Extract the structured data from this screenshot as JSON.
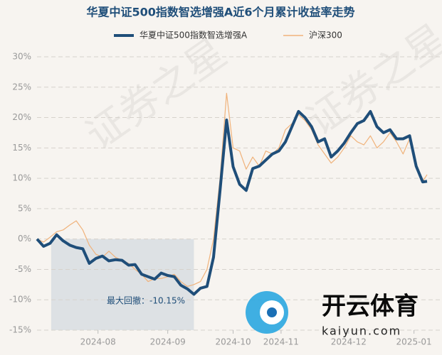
{
  "chart_data": {
    "type": "line",
    "title": "华夏中证500指数智选增强A近6个月累计收益率走势",
    "x": [
      0,
      3,
      6,
      9,
      12,
      15,
      18,
      21,
      24,
      27,
      30,
      33,
      36,
      39,
      42,
      45,
      48,
      51,
      54,
      57,
      60,
      63,
      66,
      69,
      72,
      75,
      78,
      81,
      84,
      87,
      90,
      93,
      96,
      99,
      102,
      105,
      108,
      111,
      114,
      117,
      120,
      123,
      126,
      129,
      132,
      135,
      138,
      141,
      144,
      147,
      150,
      153,
      156,
      159,
      162,
      165,
      168,
      171,
      174,
      177,
      179
    ],
    "series": [
      {
        "name": "华夏中证500指数智选增强A",
        "color": "#1f4e79",
        "values": [
          0,
          -1.2,
          -0.7,
          0.7,
          -0.3,
          -1.0,
          -1.4,
          -1.6,
          -4.0,
          -3.2,
          -2.8,
          -3.6,
          -3.4,
          -3.5,
          -4.3,
          -4.2,
          -5.8,
          -6.2,
          -6.6,
          -5.6,
          -6.0,
          -6.2,
          -7.6,
          -8.2,
          -9.1,
          -8.1,
          -7.8,
          -3.0,
          8.0,
          19.6,
          11.9,
          9.0,
          8.0,
          11.6,
          12.0,
          13.0,
          14.0,
          14.5,
          16.0,
          18.5,
          21.0,
          20.0,
          18.5,
          16.0,
          16.5,
          13.5,
          14.5,
          15.8,
          17.5,
          19.0,
          19.5,
          21.0,
          18.5,
          17.5,
          18.0,
          16.5,
          16.5,
          17.0,
          12.0,
          9.4,
          9.5
        ]
      },
      {
        "name": "沪深300",
        "color": "#f0b27a",
        "values": [
          0,
          -0.5,
          0.3,
          1.2,
          1.5,
          2.3,
          3.0,
          1.5,
          -1.0,
          -2.5,
          -3.0,
          -2.0,
          -3.0,
          -3.5,
          -4.0,
          -5.0,
          -5.8,
          -7.0,
          -6.5,
          -6.5,
          -6.2,
          -5.8,
          -7.0,
          -7.8,
          -7.5,
          -7.0,
          -5.0,
          0,
          10.0,
          24.0,
          15.0,
          14.5,
          11.5,
          13.5,
          12.0,
          14.5,
          14.0,
          15.0,
          18.0,
          19.0,
          20.5,
          19.5,
          18.0,
          15.5,
          14.0,
          12.5,
          13.5,
          15.0,
          17.0,
          16.0,
          15.5,
          17.0,
          15.0,
          16.0,
          17.5,
          16.0,
          14.0,
          16.5,
          12.0,
          9.5,
          10.6
        ]
      }
    ],
    "xlim": [
      0,
      179
    ],
    "xticks": [
      {
        "value": 28,
        "label": "2024-08"
      },
      {
        "value": 60,
        "label": "2024-09"
      },
      {
        "value": 90,
        "label": "2024-10"
      },
      {
        "value": 112,
        "label": "2024-11"
      },
      {
        "value": 143,
        "label": "2024-12"
      },
      {
        "value": 173,
        "label": "2025-01"
      }
    ],
    "ylim": [
      -15,
      30
    ],
    "yticks": [
      {
        "value": -15,
        "label": "-15%"
      },
      {
        "value": -10,
        "label": "-10%"
      },
      {
        "value": -5,
        "label": "-5%"
      },
      {
        "value": 0,
        "label": "0%"
      },
      {
        "value": 5,
        "label": "5%"
      },
      {
        "value": 10,
        "label": "10%"
      },
      {
        "value": 15,
        "label": "15%"
      },
      {
        "value": 20,
        "label": "20%"
      },
      {
        "value": 25,
        "label": "25%"
      },
      {
        "value": 30,
        "label": "30%"
      }
    ],
    "grid": true,
    "max_drawdown": {
      "label": "最大回撤：-10.15%",
      "x": [
        6.5,
        72
      ]
    },
    "watermark": "证券之星",
    "logo": {
      "name": "开云体育",
      "site": "kaiyun.com"
    }
  }
}
